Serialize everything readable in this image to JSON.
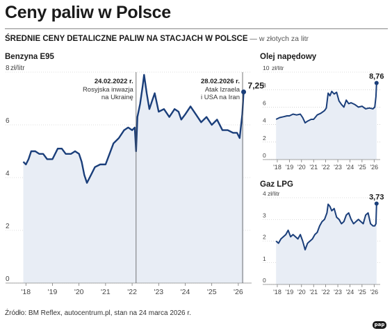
{
  "header": {
    "title": "Ceny paliw w Polsce",
    "subtitle_bold": "ŚREDNIE CENY DETALICZNE PALIW NA STACJACH W POLSCE",
    "subtitle_light": " — w złotych za litr"
  },
  "footer": {
    "source": "Źródło: BM Reflex, autocentrum.pl, stan na 24 marca 2026 r.",
    "logo": "pap"
  },
  "colors": {
    "line": "#1a3e7a",
    "fill": "#e8edf5",
    "grid": "#bbbbbb",
    "annotation": "#555555"
  },
  "chart_data": [
    {
      "id": "benzyna",
      "type": "area",
      "title": "Benzyna E95",
      "unit_label": "zł/litr",
      "ylim": [
        0,
        8
      ],
      "yticks": [
        0,
        2,
        4,
        6,
        8
      ],
      "xlim": [
        2017.6,
        2026.5
      ],
      "xticks": [
        2018,
        2019,
        2020,
        2021,
        2022,
        2023,
        2024,
        2025,
        2026
      ],
      "xtick_labels": [
        "'18",
        "'19",
        "'20",
        "'21",
        "'22",
        "'23",
        "'24",
        "'25",
        "'26"
      ],
      "last_label": "7,25",
      "annotations": [
        {
          "date_label": "24.02.2022 r.",
          "text": [
            "Rosyjska inwazja",
            "na Ukrainę"
          ],
          "x": 2022.15
        },
        {
          "date_label": "28.02.2026 r.",
          "text": [
            "Atak Izraela",
            "i USA na Iran"
          ],
          "x": 2026.16
        }
      ],
      "x": [
        2017.9,
        2018.0,
        2018.1,
        2018.2,
        2018.35,
        2018.5,
        2018.65,
        2018.8,
        2019.0,
        2019.2,
        2019.35,
        2019.5,
        2019.7,
        2019.85,
        2020.0,
        2020.1,
        2020.2,
        2020.3,
        2020.45,
        2020.6,
        2020.8,
        2021.0,
        2021.15,
        2021.3,
        2021.5,
        2021.7,
        2021.85,
        2022.0,
        2022.1,
        2022.15,
        2022.2,
        2022.3,
        2022.4,
        2022.45,
        2022.55,
        2022.65,
        2022.75,
        2022.85,
        2023.0,
        2023.2,
        2023.4,
        2023.6,
        2023.75,
        2023.85,
        2024.0,
        2024.2,
        2024.4,
        2024.6,
        2024.8,
        2025.0,
        2025.2,
        2025.4,
        2025.6,
        2025.8,
        2025.95,
        2026.05,
        2026.15,
        2026.2
      ],
      "y": [
        4.6,
        4.5,
        4.7,
        5.0,
        5.0,
        4.9,
        4.9,
        4.7,
        4.7,
        5.1,
        5.1,
        4.9,
        4.9,
        5.0,
        4.9,
        4.6,
        4.1,
        3.8,
        4.1,
        4.4,
        4.5,
        4.5,
        4.9,
        5.3,
        5.5,
        5.8,
        5.9,
        5.8,
        5.9,
        5.0,
        6.3,
        6.8,
        7.5,
        7.9,
        7.2,
        6.6,
        6.9,
        7.2,
        6.5,
        6.6,
        6.3,
        6.6,
        6.5,
        6.2,
        6.4,
        6.7,
        6.4,
        6.1,
        6.3,
        6.0,
        6.2,
        5.8,
        5.8,
        5.7,
        5.7,
        5.5,
        6.4,
        7.25
      ]
    },
    {
      "id": "olej",
      "type": "area",
      "title": "Olej napędowy",
      "unit_label": "zł/litr",
      "ylim": [
        0,
        10
      ],
      "yticks": [
        0,
        2,
        4,
        6,
        8,
        10
      ],
      "xlim": [
        2017.6,
        2026.5
      ],
      "xticks": [
        2018,
        2019,
        2020,
        2021,
        2022,
        2023,
        2024,
        2025,
        2026
      ],
      "xtick_labels": [
        "'18",
        "'19",
        "'20",
        "'21",
        "'22",
        "'23",
        "'24",
        "'25",
        "'26"
      ],
      "last_label": "8,76",
      "x": [
        2017.9,
        2018.2,
        2018.5,
        2018.8,
        2019.0,
        2019.3,
        2019.6,
        2019.9,
        2020.1,
        2020.3,
        2020.5,
        2020.8,
        2021.0,
        2021.3,
        2021.6,
        2021.9,
        2022.05,
        2022.2,
        2022.35,
        2022.5,
        2022.7,
        2022.9,
        2023.1,
        2023.3,
        2023.5,
        2023.7,
        2023.9,
        2024.1,
        2024.4,
        2024.7,
        2025.0,
        2025.3,
        2025.6,
        2025.9,
        2026.05,
        2026.15,
        2026.2
      ],
      "y": [
        4.6,
        4.8,
        4.9,
        5.0,
        5.0,
        5.2,
        5.1,
        5.2,
        4.8,
        4.2,
        4.4,
        4.6,
        4.6,
        5.1,
        5.3,
        5.6,
        5.9,
        7.6,
        7.3,
        7.8,
        7.5,
        7.7,
        6.7,
        6.3,
        6.0,
        6.8,
        6.4,
        6.5,
        6.3,
        6.0,
        6.1,
        5.8,
        5.9,
        5.8,
        6.0,
        7.2,
        8.76
      ]
    },
    {
      "id": "lpg",
      "type": "area",
      "title": "Gaz LPG",
      "unit_label": "zł/litr",
      "ylim": [
        0,
        4
      ],
      "yticks": [
        0,
        1,
        2,
        3,
        4
      ],
      "xlim": [
        2017.6,
        2026.5
      ],
      "xticks": [
        2018,
        2019,
        2020,
        2021,
        2022,
        2023,
        2024,
        2025,
        2026
      ],
      "xtick_labels": [
        "'18",
        "'19",
        "'20",
        "'21",
        "'22",
        "'23",
        "'24",
        "'25",
        "'26"
      ],
      "last_label": "3,73",
      "x": [
        2017.9,
        2018.1,
        2018.3,
        2018.5,
        2018.7,
        2018.9,
        2019.1,
        2019.3,
        2019.5,
        2019.7,
        2019.9,
        2020.1,
        2020.3,
        2020.5,
        2020.7,
        2020.9,
        2021.1,
        2021.3,
        2021.5,
        2021.7,
        2021.9,
        2022.1,
        2022.2,
        2022.35,
        2022.5,
        2022.7,
        2022.9,
        2023.1,
        2023.3,
        2023.5,
        2023.7,
        2023.9,
        2024.1,
        2024.3,
        2024.5,
        2024.7,
        2024.9,
        2025.1,
        2025.3,
        2025.5,
        2025.7,
        2025.9,
        2026.05,
        2026.15,
        2026.2
      ],
      "y": [
        2.0,
        1.9,
        2.1,
        2.2,
        2.3,
        2.5,
        2.2,
        2.3,
        2.2,
        2.1,
        2.3,
        2.0,
        1.6,
        1.9,
        2.0,
        2.1,
        2.3,
        2.4,
        2.7,
        2.9,
        3.0,
        3.3,
        3.7,
        3.6,
        3.4,
        3.5,
        3.1,
        3.0,
        2.8,
        2.9,
        3.2,
        3.3,
        3.0,
        2.8,
        2.9,
        3.0,
        2.9,
        2.8,
        3.2,
        3.3,
        2.8,
        2.7,
        2.7,
        2.8,
        3.73
      ]
    }
  ]
}
